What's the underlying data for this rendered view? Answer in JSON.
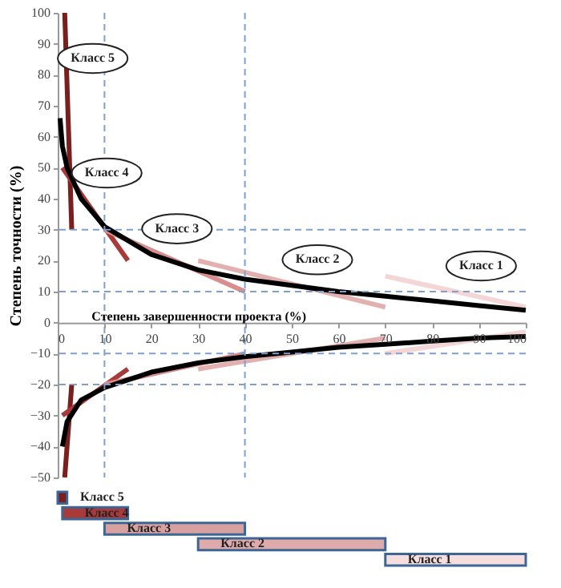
{
  "chart_data": [
    {
      "type": "line",
      "xlabel": "Степень завершенности проекта (%)",
      "ylabel": "Степень точности (%)",
      "xlim": [
        0,
        100
      ],
      "ylim": [
        -50,
        100
      ],
      "xticks": [
        0,
        10,
        20,
        30,
        40,
        50,
        60,
        70,
        80,
        90,
        100
      ],
      "yticks": [
        -50,
        -40,
        -30,
        -20,
        -10,
        0,
        10,
        20,
        30,
        40,
        50,
        60,
        70,
        80,
        90,
        100
      ],
      "grid": false,
      "legend": false,
      "marker": "none",
      "series": [
        {
          "color": "#7a1e1e",
          "x": [
            1.5,
            3
          ],
          "values": [
            100,
            30
          ]
        },
        {
          "color": "#7a1e1e",
          "x": [
            1.5,
            3
          ],
          "values": [
            -50,
            -20
          ]
        },
        {
          "color": "#a83a3a",
          "x": [
            1,
            15
          ],
          "values": [
            50,
            20
          ]
        },
        {
          "color": "#a83a3a",
          "x": [
            1,
            15
          ],
          "values": [
            -30,
            -15
          ]
        },
        {
          "color": "#d98e8e",
          "x": [
            10,
            40
          ],
          "values": [
            30,
            10
          ]
        },
        {
          "color": "#d98e8e",
          "x": [
            10,
            40
          ],
          "values": [
            -20,
            -10
          ]
        },
        {
          "color": "#e3b0b0",
          "x": [
            30,
            70
          ],
          "values": [
            20,
            5
          ]
        },
        {
          "color": "#e3b0b0",
          "x": [
            30,
            70
          ],
          "values": [
            -15,
            -5
          ]
        },
        {
          "color": "#f4d6d6",
          "x": [
            70,
            100
          ],
          "values": [
            15,
            5
          ]
        },
        {
          "color": "#f4d6d6",
          "x": [
            70,
            100
          ],
          "values": [
            -10,
            -3
          ]
        },
        {
          "color": "#000000",
          "x": [
            0.5,
            1,
            2,
            5,
            10,
            20,
            30,
            40,
            50,
            60,
            70,
            80,
            90,
            100
          ],
          "values": [
            66,
            57,
            50,
            40,
            31,
            22,
            17,
            14,
            12,
            10,
            8.5,
            7,
            5.5,
            4
          ]
        },
        {
          "color": "#000000",
          "x": [
            1,
            2,
            5,
            10,
            20,
            30,
            40,
            50,
            60,
            70,
            80,
            90,
            100
          ],
          "values": [
            -40,
            -32,
            -25,
            -21,
            -16,
            -13,
            -11,
            -9.5,
            -8,
            -7,
            -6,
            -5,
            -4.5
          ]
        }
      ],
      "ref_lines": [
        {
          "axis": "y",
          "value": 30,
          "color": "#7f9fcf",
          "line_style": "dashed"
        },
        {
          "axis": "y",
          "value": 10,
          "color": "#7f9fcf",
          "line_style": "dashed"
        },
        {
          "axis": "y",
          "value": -10,
          "color": "#7f9fcf",
          "line_style": "dashed"
        },
        {
          "axis": "y",
          "value": -20,
          "color": "#7f9fcf",
          "line_style": "dashed"
        },
        {
          "axis": "x",
          "value": 10,
          "color": "#7f9fcf",
          "line_style": "dashed"
        },
        {
          "axis": "x",
          "value": 40,
          "color": "#7f9fcf",
          "line_style": "dashed"
        }
      ],
      "annotations": [
        {
          "text": "Класс 5",
          "x": 2,
          "y": 77
        },
        {
          "text": "Класс 4",
          "x": 5,
          "y": 40
        },
        {
          "text": "Класс 3",
          "x": 20,
          "y": 22
        },
        {
          "text": "Класс 2",
          "x": 50,
          "y": 12
        },
        {
          "text": "Класс 1",
          "x": 85,
          "y": 10
        }
      ]
    },
    {
      "type": "bar",
      "orientation": "horizontal",
      "categories": [
        "Класс 5",
        "Класс 4",
        "Класс 3",
        "Класс 2",
        "Класс 1"
      ],
      "base": [
        0,
        1,
        10,
        30,
        70
      ],
      "values": [
        2,
        14,
        30,
        40,
        30
      ],
      "colors": [
        "#7a1e1e",
        "#a83a3a",
        "#d9a0a0",
        "#dfaaaa",
        "#f7dede"
      ],
      "xlim": [
        0,
        100
      ],
      "tick_labels": false
    }
  ]
}
